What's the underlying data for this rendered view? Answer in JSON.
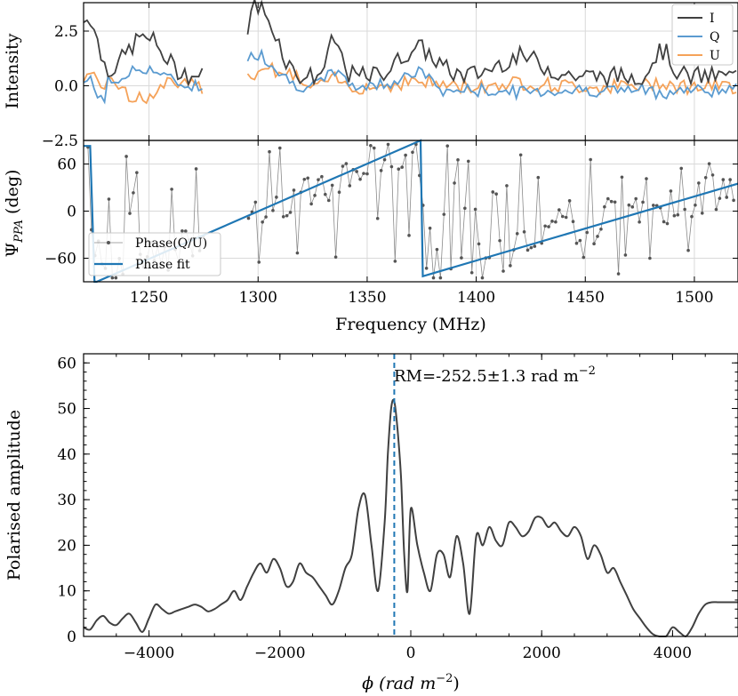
{
  "chart_data": [
    {
      "type": "line",
      "panel": "top",
      "title": "",
      "xlabel": "",
      "ylabel": "Intensity",
      "xlim": [
        1220,
        1520
      ],
      "ylim": [
        -2.5,
        3.8
      ],
      "grid": true,
      "legend_position": "top-right",
      "yticks": [
        {
          "value": 2.5,
          "label": "2.5"
        },
        {
          "value": 0.0,
          "label": "0.0"
        },
        {
          "value": -2.5,
          "label": "−2.5"
        }
      ],
      "series": [
        {
          "name": "I",
          "color": "#404040"
        },
        {
          "name": "Q",
          "color": "#5b9bd0"
        },
        {
          "name": "U",
          "color": "#f5a259"
        }
      ],
      "gap": [
        1275,
        1294
      ]
    },
    {
      "type": "scatter",
      "panel": "middle",
      "title": "",
      "xlabel": "Frequency (MHz)",
      "ylabel": "Ψ",
      "ylabel_sub": "PPA",
      "ylabel_unit": " (deg)",
      "xlim": [
        1220,
        1520
      ],
      "ylim": [
        -90,
        90
      ],
      "grid": true,
      "legend_position": "bottom-left",
      "xticks": [
        {
          "value": 1250,
          "label": "1250"
        },
        {
          "value": 1300,
          "label": "1300"
        },
        {
          "value": 1350,
          "label": "1350"
        },
        {
          "value": 1400,
          "label": "1400"
        },
        {
          "value": 1450,
          "label": "1450"
        },
        {
          "value": 1500,
          "label": "1500"
        }
      ],
      "yticks": [
        {
          "value": 60,
          "label": "60"
        },
        {
          "value": 0,
          "label": "0"
        },
        {
          "value": -60,
          "label": "−60"
        }
      ],
      "series": [
        {
          "name": "Phase(Q/U)",
          "color": "#555555"
        },
        {
          "name": "Phase fit",
          "color": "#1f77b4"
        }
      ],
      "fit_points": [
        [
          1220,
          83
        ],
        [
          1223,
          83
        ],
        [
          1225,
          -90
        ],
        [
          1226,
          -90
        ],
        [
          1374.5,
          90
        ],
        [
          1375.5,
          -83
        ],
        [
          1520,
          35
        ]
      ]
    },
    {
      "type": "line",
      "panel": "bottom",
      "title": "",
      "xlabel": "ϕ (rad m",
      "xlabel_sup": "−2",
      "xlabel_end": ")",
      "ylabel": "Polarised amplitude",
      "xlim": [
        -5000,
        5000
      ],
      "ylim": [
        0,
        62
      ],
      "grid": false,
      "xticks": [
        {
          "value": -4000,
          "label": "−4000"
        },
        {
          "value": -2000,
          "label": "−2000"
        },
        {
          "value": 0,
          "label": "0"
        },
        {
          "value": 2000,
          "label": "2000"
        },
        {
          "value": 4000,
          "label": "4000"
        }
      ],
      "yticks": [
        {
          "value": 0,
          "label": "0"
        },
        {
          "value": 10,
          "label": "10"
        },
        {
          "value": 20,
          "label": "20"
        },
        {
          "value": 30,
          "label": "30"
        },
        {
          "value": 40,
          "label": "40"
        },
        {
          "value": 50,
          "label": "50"
        },
        {
          "value": 60,
          "label": "60"
        }
      ],
      "rm_line": -252.5,
      "annotation": "RM=-252.5±1.3 rad m",
      "annotation_sup": "−2",
      "color": "#404040",
      "rm_color": "#1f77b4",
      "x": [
        -5000,
        -4900,
        -4800,
        -4700,
        -4600,
        -4500,
        -4400,
        -4300,
        -4200,
        -4100,
        -4000,
        -3900,
        -3800,
        -3700,
        -3600,
        -3500,
        -3400,
        -3300,
        -3200,
        -3100,
        -3000,
        -2900,
        -2800,
        -2700,
        -2600,
        -2500,
        -2400,
        -2300,
        -2200,
        -2100,
        -2000,
        -1900,
        -1800,
        -1700,
        -1600,
        -1500,
        -1400,
        -1300,
        -1200,
        -1100,
        -1000,
        -900,
        -800,
        -700,
        -600,
        -500,
        -400,
        -350,
        -300,
        -252,
        -200,
        -150,
        -100,
        -50,
        0,
        100,
        200,
        300,
        400,
        500,
        600,
        700,
        800,
        900,
        1000,
        1100,
        1200,
        1300,
        1400,
        1500,
        1600,
        1700,
        1800,
        1900,
        2000,
        2100,
        2200,
        2300,
        2400,
        2500,
        2600,
        2700,
        2800,
        2900,
        3000,
        3100,
        3200,
        3300,
        3400,
        3500,
        3600,
        3700,
        3800,
        3900,
        4000,
        4100,
        4200,
        4300,
        4400,
        4500,
        4600,
        4700,
        4800,
        4900,
        5000
      ],
      "y": [
        2,
        1.5,
        3.5,
        4.5,
        3,
        2.5,
        4,
        5,
        3,
        1,
        4,
        7,
        6,
        5,
        5.5,
        6,
        6.5,
        7,
        6.5,
        5.5,
        6,
        7,
        8,
        10,
        8,
        11,
        14,
        16,
        14,
        17,
        15,
        11,
        12,
        16,
        14,
        13,
        11,
        9,
        7,
        10,
        15,
        18,
        28,
        31,
        20,
        10,
        25,
        40,
        50,
        51.5,
        45,
        35,
        18,
        10,
        28,
        20,
        14,
        10,
        18,
        18,
        13,
        22,
        16,
        5,
        22,
        20,
        24,
        21,
        20,
        25,
        24,
        22,
        23,
        26,
        26,
        24,
        25,
        23,
        22,
        24,
        22,
        17,
        20,
        18,
        14,
        15,
        12,
        9,
        6,
        4,
        2,
        0.5,
        0,
        0,
        2,
        1,
        0,
        2,
        5,
        7,
        7.5,
        7.5,
        7.5,
        7.5,
        7.5
      ]
    }
  ]
}
